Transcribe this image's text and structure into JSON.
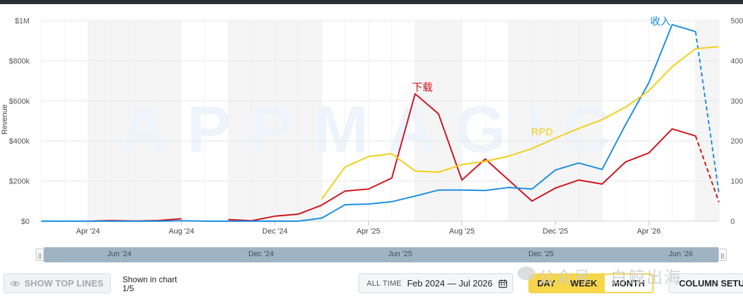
{
  "watermark": "APPMAGIC",
  "chart_data": {
    "type": "line",
    "ylabel": "Revenue",
    "y_left": {
      "min": 0,
      "max": 1000000,
      "ticks": [
        0,
        200000,
        400000,
        600000,
        800000,
        1000000
      ],
      "tick_labels": [
        "$0",
        "$200k",
        "$400k",
        "$600k",
        "$800k",
        "$1M"
      ]
    },
    "y_right": {
      "min": 0,
      "max": 500,
      "ticks": [
        0,
        100,
        200,
        300,
        400,
        500
      ],
      "tick_labels": [
        "0",
        "100",
        "200",
        "300",
        "400",
        "500"
      ]
    },
    "x_range": [
      "2024-02",
      "2026-07"
    ],
    "x_ticks": [
      "Apr '24",
      "Aug '24",
      "Dec '24",
      "Apr '25",
      "Aug '25",
      "Dec '25",
      "Apr '26"
    ],
    "grid": true,
    "shaded_months": [
      "2024-04",
      "2024-05",
      "2024-06",
      "2024-07",
      "2024-10",
      "2024-11",
      "2024-12",
      "2025-01",
      "2025-06",
      "2025-07",
      "2025-10",
      "2025-11",
      "2025-12",
      "2026-01",
      "2026-06"
    ],
    "series": [
      {
        "name": "下载",
        "color": "#d0121b",
        "axis": "left",
        "split_index": 28,
        "gap_after_index": 6,
        "x": [
          "2024-02",
          "2024-03",
          "2024-04",
          "2024-05",
          "2024-06",
          "2024-07",
          "2024-08",
          "2024-09",
          "2024-10",
          "2024-11",
          "2024-12",
          "2025-01",
          "2025-02",
          "2025-03",
          "2025-04",
          "2025-05",
          "2025-06",
          "2025-07",
          "2025-08",
          "2025-09",
          "2025-10",
          "2025-11",
          "2025-12",
          "2026-01",
          "2026-02",
          "2026-03",
          "2026-04",
          "2026-05",
          "2026-06",
          "2026-07"
        ],
        "y": [
          0,
          0,
          0,
          3000,
          1000,
          3000,
          12000,
          null,
          8000,
          2000,
          25000,
          35000,
          80000,
          150000,
          160000,
          215000,
          635000,
          535000,
          205000,
          310000,
          205000,
          100000,
          165000,
          205000,
          185000,
          295000,
          340000,
          460000,
          425000,
          95000
        ]
      },
      {
        "name": "收入",
        "color": "#1a8de0",
        "axis": "left",
        "split_index": 28,
        "x": [
          "2024-02",
          "2024-03",
          "2024-04",
          "2024-05",
          "2024-06",
          "2024-07",
          "2024-08",
          "2024-09",
          "2024-10",
          "2024-11",
          "2024-12",
          "2025-01",
          "2025-02",
          "2025-03",
          "2025-04",
          "2025-05",
          "2025-06",
          "2025-07",
          "2025-08",
          "2025-09",
          "2025-10",
          "2025-11",
          "2025-12",
          "2026-01",
          "2026-02",
          "2026-03",
          "2026-04",
          "2026-05",
          "2026-06",
          "2026-07"
        ],
        "y": [
          0,
          0,
          0,
          0,
          0,
          0,
          2000,
          0,
          0,
          0,
          0,
          0,
          15000,
          82000,
          85000,
          97000,
          125000,
          155000,
          155000,
          153000,
          168000,
          160000,
          255000,
          290000,
          258000,
          480000,
          690000,
          980000,
          945000,
          140000
        ]
      },
      {
        "name": "RPD",
        "color": "#f2cf15",
        "axis": "right",
        "split_index": 28,
        "x": [
          "2025-02",
          "2025-03",
          "2025-04",
          "2025-05",
          "2025-06",
          "2025-07",
          "2025-08",
          "2025-09",
          "2025-10",
          "2025-11",
          "2025-12",
          "2026-01",
          "2026-02",
          "2026-03",
          "2026-04",
          "2026-05",
          "2026-06",
          "2026-07"
        ],
        "y": [
          55,
          135,
          161,
          168,
          125,
          122,
          141,
          149,
          162,
          181,
          207,
          231,
          253,
          284,
          325,
          385,
          430,
          435
        ]
      }
    ]
  },
  "navigator": {
    "labels": [
      "Jun '24",
      "Dec '24",
      "Jun '25",
      "Dec '25",
      "Jun '26"
    ]
  },
  "controls": {
    "show_top_lines": "SHOW TOP LINES",
    "shown_in_chart": "Shown in chart",
    "shown_count": "1/5",
    "all_time": "ALL TIME",
    "date_range": "Feb 2024 — Jul 2026",
    "day": "DAY",
    "week": "WEEK",
    "month": "MONTH",
    "column_setup": "COLUMN SETUP",
    "social_watermark": "公众号 · 白鲸出海"
  },
  "colors": {
    "accent_yellow": "#f7d64a",
    "grid": "#e4e6e9",
    "shade": "#f5f5f6"
  }
}
